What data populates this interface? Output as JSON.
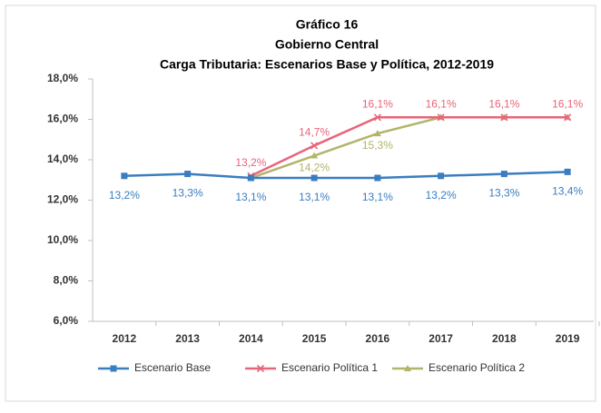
{
  "chart_data": {
    "type": "line",
    "title": [
      "Gráfico 16",
      "Gobierno Central",
      "Carga Tributaria:  Escenarios Base y Política, 2012-2019"
    ],
    "categories": [
      "2012",
      "2013",
      "2014",
      "2015",
      "2016",
      "2017",
      "2018",
      "2019"
    ],
    "series": [
      {
        "name": "Escenario Base",
        "color": "#3a7dc0",
        "marker": "square",
        "values": [
          13.2,
          13.3,
          13.1,
          13.1,
          13.1,
          13.2,
          13.3,
          13.4
        ],
        "value_labels": [
          "13,2%",
          "13,3%",
          "13,1%",
          "13,1%",
          "13,1%",
          "13,2%",
          "13,3%",
          "13,4%"
        ]
      },
      {
        "name": "Escenario Política 1",
        "color": "#e8647a",
        "marker": "cross",
        "values": [
          null,
          null,
          13.2,
          14.7,
          16.1,
          16.1,
          16.1,
          16.1
        ],
        "value_labels": [
          null,
          null,
          "13,2%",
          "14,7%",
          "16,1%",
          "16,1%",
          "16,1%",
          "16,1%"
        ]
      },
      {
        "name": "Escenario Política 2",
        "color": "#b2b46a",
        "marker": "triangle",
        "values": [
          null,
          null,
          13.1,
          14.2,
          15.3,
          16.1,
          16.1,
          16.1
        ],
        "value_labels": [
          null,
          null,
          null,
          "14,2%",
          "15,3%",
          null,
          null,
          null
        ]
      }
    ],
    "ylim": [
      6,
      18
    ],
    "yticks": [
      {
        "value": 6,
        "label": "6,0%"
      },
      {
        "value": 8,
        "label": "8,0%"
      },
      {
        "value": 10,
        "label": "10,0%"
      },
      {
        "value": 12,
        "label": "12,0%"
      },
      {
        "value": 14,
        "label": "14,0%"
      },
      {
        "value": 16,
        "label": "16,0%"
      },
      {
        "value": 18,
        "label": "18,0%"
      }
    ],
    "grid": false,
    "legend": "bottom"
  }
}
